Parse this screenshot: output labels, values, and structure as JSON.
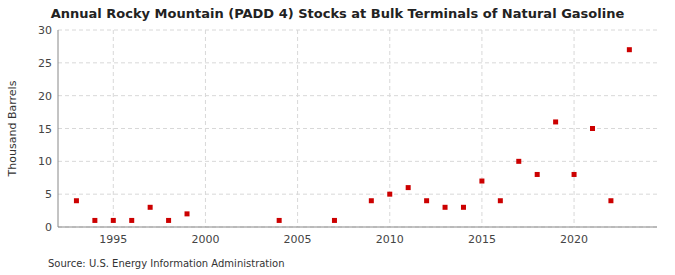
{
  "chart_data": {
    "type": "scatter",
    "title": "Annual Rocky Mountain (PADD 4) Stocks at Bulk Terminals of Natural Gasoline",
    "y_label": "Thousand Barrels",
    "annotations": [
      "Source: U.S. Energy Information Administration"
    ],
    "x": [
      1993,
      1994,
      1995,
      1996,
      1997,
      1998,
      1999,
      2004,
      2007,
      2009,
      2010,
      2011,
      2012,
      2013,
      2014,
      2015,
      2016,
      2017,
      2018,
      2019,
      2020,
      2021,
      2022,
      2023
    ],
    "values": [
      4,
      1,
      1,
      1,
      3,
      1,
      2,
      1,
      1,
      4,
      5,
      6,
      4,
      3,
      3,
      7,
      4,
      10,
      8,
      16,
      8,
      15,
      4,
      27
    ],
    "color": "#cc0000",
    "marker": "square",
    "xlim": [
      1992,
      2024.5
    ],
    "ylim": [
      0,
      30
    ],
    "xticks": [
      1995,
      2000,
      2005,
      2010,
      2015,
      2020
    ],
    "yticks": [
      0,
      5,
      10,
      15,
      20,
      25,
      30
    ],
    "grid": true
  }
}
